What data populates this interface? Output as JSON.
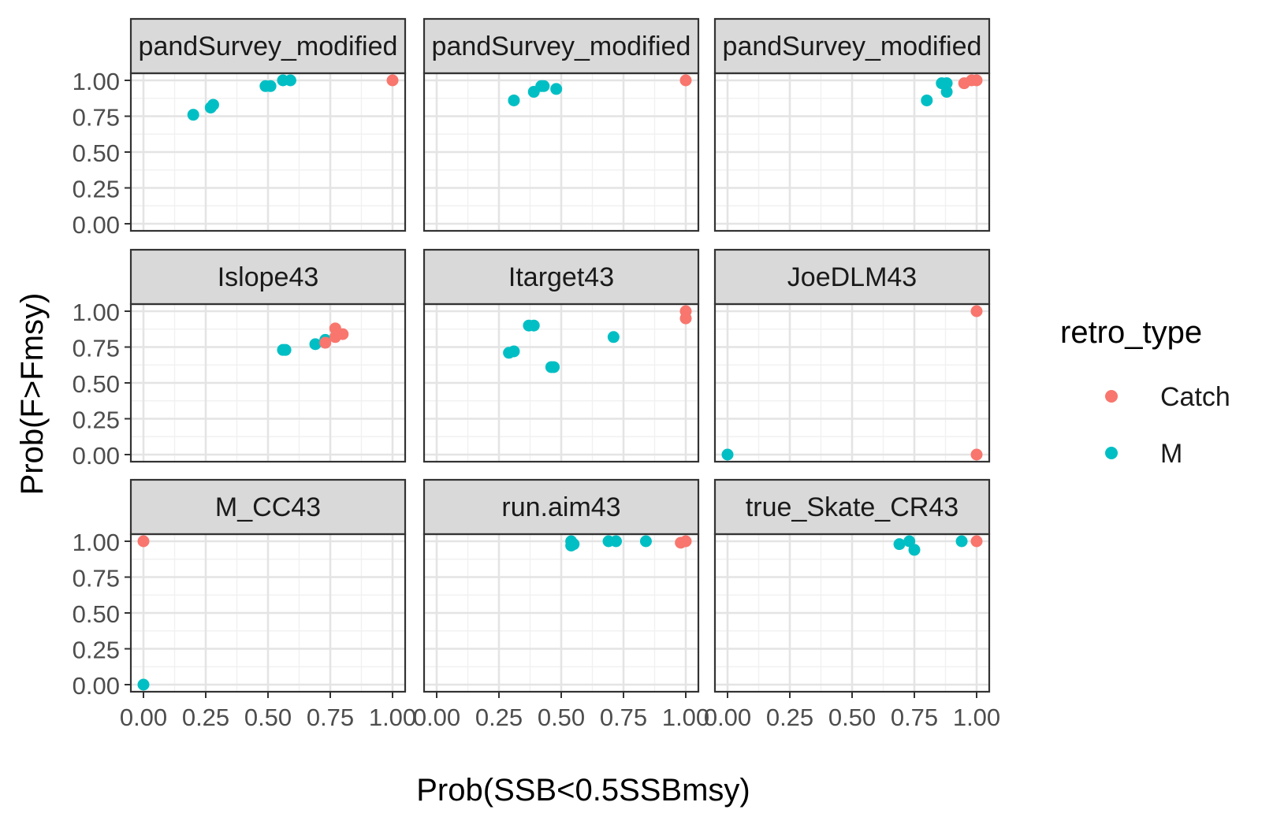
{
  "chart_data": {
    "type": "scatter",
    "xlabel": "Prob(SSB<0.5SSBmsy)",
    "ylabel": "Prob(F>Fmsy)",
    "xlim": [
      0,
      1
    ],
    "ylim": [
      0,
      1
    ],
    "xticks": [
      "0.00",
      "0.25",
      "0.50",
      "0.75",
      "1.00"
    ],
    "yticks": [
      "0.00",
      "0.25",
      "0.50",
      "0.75",
      "1.00"
    ],
    "grid": true,
    "legend": {
      "title": "retro_type",
      "placement": "right",
      "entries": [
        {
          "name": "Catch",
          "color": "#F8766D"
        },
        {
          "name": "M",
          "color": "#00BFC4"
        }
      ]
    },
    "panels": [
      {
        "title": "pandSurvey_modified",
        "points": [
          {
            "x": 0.2,
            "y": 0.76,
            "type": "M"
          },
          {
            "x": 0.27,
            "y": 0.81,
            "type": "M"
          },
          {
            "x": 0.28,
            "y": 0.83,
            "type": "M"
          },
          {
            "x": 0.49,
            "y": 0.96,
            "type": "M"
          },
          {
            "x": 0.51,
            "y": 0.96,
            "type": "M"
          },
          {
            "x": 0.56,
            "y": 1.0,
            "type": "M"
          },
          {
            "x": 0.59,
            "y": 1.0,
            "type": "M"
          },
          {
            "x": 1.0,
            "y": 1.0,
            "type": "Catch"
          }
        ]
      },
      {
        "title": "pandSurvey_modified",
        "points": [
          {
            "x": 0.31,
            "y": 0.86,
            "type": "M"
          },
          {
            "x": 0.39,
            "y": 0.92,
            "type": "M"
          },
          {
            "x": 0.42,
            "y": 0.96,
            "type": "M"
          },
          {
            "x": 0.43,
            "y": 0.96,
            "type": "M"
          },
          {
            "x": 0.48,
            "y": 0.94,
            "type": "M"
          },
          {
            "x": 1.0,
            "y": 1.0,
            "type": "Catch"
          }
        ]
      },
      {
        "title": "pandSurvey_modified",
        "points": [
          {
            "x": 0.8,
            "y": 0.86,
            "type": "M"
          },
          {
            "x": 0.86,
            "y": 0.98,
            "type": "M"
          },
          {
            "x": 0.88,
            "y": 0.98,
            "type": "M"
          },
          {
            "x": 0.88,
            "y": 0.92,
            "type": "M"
          },
          {
            "x": 0.95,
            "y": 0.98,
            "type": "Catch"
          },
          {
            "x": 0.98,
            "y": 1.0,
            "type": "Catch"
          },
          {
            "x": 1.0,
            "y": 1.0,
            "type": "Catch"
          }
        ]
      },
      {
        "title": "Islope43",
        "points": [
          {
            "x": 0.56,
            "y": 0.73,
            "type": "M"
          },
          {
            "x": 0.57,
            "y": 0.73,
            "type": "M"
          },
          {
            "x": 0.69,
            "y": 0.77,
            "type": "M"
          },
          {
            "x": 0.73,
            "y": 0.8,
            "type": "M"
          },
          {
            "x": 0.73,
            "y": 0.78,
            "type": "Catch"
          },
          {
            "x": 0.77,
            "y": 0.88,
            "type": "Catch"
          },
          {
            "x": 0.77,
            "y": 0.82,
            "type": "Catch"
          },
          {
            "x": 0.8,
            "y": 0.84,
            "type": "Catch"
          }
        ]
      },
      {
        "title": "Itarget43",
        "points": [
          {
            "x": 0.29,
            "y": 0.71,
            "type": "M"
          },
          {
            "x": 0.31,
            "y": 0.72,
            "type": "M"
          },
          {
            "x": 0.37,
            "y": 0.9,
            "type": "M"
          },
          {
            "x": 0.39,
            "y": 0.9,
            "type": "M"
          },
          {
            "x": 0.46,
            "y": 0.61,
            "type": "M"
          },
          {
            "x": 0.47,
            "y": 0.61,
            "type": "M"
          },
          {
            "x": 0.71,
            "y": 0.82,
            "type": "M"
          },
          {
            "x": 1.0,
            "y": 1.0,
            "type": "Catch"
          },
          {
            "x": 1.0,
            "y": 0.95,
            "type": "Catch"
          }
        ]
      },
      {
        "title": "JoeDLM43",
        "points": [
          {
            "x": 0.0,
            "y": 0.0,
            "type": "M"
          },
          {
            "x": 1.0,
            "y": 1.0,
            "type": "Catch"
          },
          {
            "x": 1.0,
            "y": 0.0,
            "type": "Catch"
          }
        ]
      },
      {
        "title": "M_CC43",
        "points": [
          {
            "x": 0.0,
            "y": 1.0,
            "type": "Catch"
          },
          {
            "x": 0.0,
            "y": 0.0,
            "type": "M"
          }
        ]
      },
      {
        "title": "run.aim43",
        "points": [
          {
            "x": 0.54,
            "y": 0.97,
            "type": "M"
          },
          {
            "x": 0.54,
            "y": 1.0,
            "type": "M"
          },
          {
            "x": 0.55,
            "y": 0.98,
            "type": "M"
          },
          {
            "x": 0.69,
            "y": 1.0,
            "type": "M"
          },
          {
            "x": 0.72,
            "y": 1.0,
            "type": "M"
          },
          {
            "x": 0.84,
            "y": 1.0,
            "type": "M"
          },
          {
            "x": 0.98,
            "y": 0.99,
            "type": "Catch"
          },
          {
            "x": 1.0,
            "y": 1.0,
            "type": "Catch"
          }
        ]
      },
      {
        "title": "true_Skate_CR43",
        "points": [
          {
            "x": 0.69,
            "y": 0.98,
            "type": "M"
          },
          {
            "x": 0.73,
            "y": 1.0,
            "type": "M"
          },
          {
            "x": 0.75,
            "y": 0.94,
            "type": "M"
          },
          {
            "x": 0.94,
            "y": 1.0,
            "type": "M"
          },
          {
            "x": 1.0,
            "y": 1.0,
            "type": "Catch"
          }
        ]
      }
    ]
  }
}
